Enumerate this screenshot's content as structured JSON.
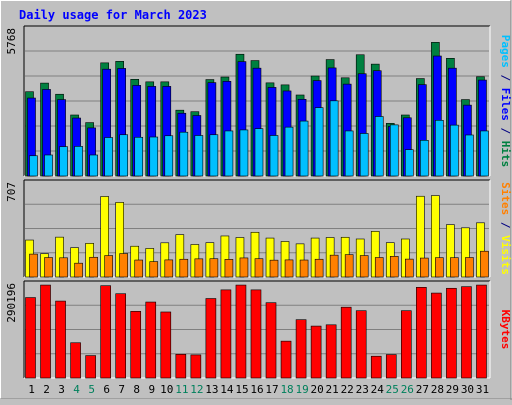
{
  "chart_data": {
    "type": "bar",
    "title": "Daily usage for March 2023",
    "categories": [
      "1",
      "2",
      "3",
      "4",
      "5",
      "6",
      "7",
      "8",
      "9",
      "10",
      "11",
      "12",
      "13",
      "14",
      "15",
      "16",
      "17",
      "18",
      "19",
      "20",
      "21",
      "22",
      "23",
      "24",
      "25",
      "26",
      "27",
      "28",
      "29",
      "30",
      "31"
    ],
    "weekend_days": [
      "4",
      "5",
      "11",
      "12",
      "18",
      "19",
      "25",
      "26"
    ],
    "panels": [
      {
        "id": "hits",
        "max_label": "5768",
        "ylim": [
          0,
          5768
        ],
        "series": [
          {
            "name": "Hits",
            "color": "#008040",
            "values": [
              3330,
              3670,
              3230,
              2410,
              2110,
              4470,
              4530,
              3820,
              3720,
              3720,
              2600,
              2540,
              3810,
              3910,
              4810,
              4560,
              3680,
              3600,
              3200,
              3950,
              4600,
              3880,
              4790,
              4420,
              2080,
              2410,
              3850,
              5280,
              4650,
              3020,
              3920
            ]
          },
          {
            "name": "Files",
            "color": "#0000ff",
            "values": [
              3080,
              3420,
              3020,
              2290,
              1900,
              4220,
              4250,
              3580,
              3540,
              3540,
              2480,
              2390,
              3690,
              3740,
              4520,
              4260,
              3500,
              3360,
              3030,
              3770,
              4270,
              3630,
              4040,
              4160,
              1960,
              2300,
              3610,
              4740,
              4260,
              2800,
              3790
            ]
          },
          {
            "name": "Pages",
            "color": "#00c0ff",
            "values": [
              800,
              830,
              1160,
              1170,
              830,
              1520,
              1630,
              1530,
              1540,
              1590,
              1730,
              1600,
              1630,
              1780,
              1820,
              1870,
              1600,
              1930,
              2170,
              2700,
              2970,
              1780,
              1680,
              2350,
              2020,
              1040,
              1410,
              2200,
              2010,
              1620,
              1780
            ]
          }
        ]
      },
      {
        "id": "visits",
        "max_label": "707",
        "ylim": [
          0,
          707
        ],
        "series": [
          {
            "name": "Visits",
            "color": "#ffff00",
            "values": [
              281,
              177,
              303,
              223,
              256,
              612,
              567,
              234,
              217,
              260,
              322,
              247,
              261,
              312,
              300,
              340,
              296,
              270,
              252,
              296,
              300,
              302,
              289,
              347,
              261,
              289,
              614,
              619,
              398,
              374,
              412
            ]
          },
          {
            "name": "Sites",
            "color": "#ff8000",
            "values": [
              174,
              148,
              146,
              105,
              150,
              163,
              178,
              129,
              117,
              130,
              135,
              138,
              139,
              134,
              145,
              139,
              128,
              130,
              129,
              135,
              166,
              170,
              163,
              148,
              157,
              136,
              144,
              147,
              147,
              148,
              196
            ]
          }
        ]
      },
      {
        "id": "kbytes",
        "max_label": "290196",
        "ylim": [
          0,
          290196
        ],
        "series": [
          {
            "name": "KBytes",
            "color": "#ff0000",
            "values": [
              251000,
              290000,
              240000,
              110000,
              70000,
              288000,
              263000,
              208000,
              237000,
              206000,
              74000,
              72000,
              248000,
              275000,
              290000,
              275000,
              235000,
              115000,
              182000,
              162000,
              166000,
              221000,
              210000,
              68000,
              73000,
              210000,
              283000,
              265000,
              280000,
              285000,
              290000
            ]
          }
        ]
      }
    ],
    "side_labels": {
      "hits": [
        {
          "text": "Pages",
          "color": "#00c0ff"
        },
        {
          "text": " / ",
          "color": "#000080"
        },
        {
          "text": "Files",
          "color": "#0000ff"
        },
        {
          "text": " / ",
          "color": "#000080"
        },
        {
          "text": "Hits",
          "color": "#008040"
        }
      ],
      "visits": [
        {
          "text": "Sites",
          "color": "#ff8000"
        },
        {
          "text": " / ",
          "color": "#000080"
        },
        {
          "text": "Visits",
          "color": "#ffff00"
        }
      ],
      "kbytes": [
        {
          "text": "KBytes",
          "color": "#ff0000"
        }
      ]
    },
    "colors": {
      "background": "#c0c0c0",
      "title": "#0000ff",
      "weekday_label": "#000000",
      "weekend_label": "#00805c",
      "gridline": "#808080"
    },
    "grid": true,
    "legend": "vertical text on right side"
  }
}
